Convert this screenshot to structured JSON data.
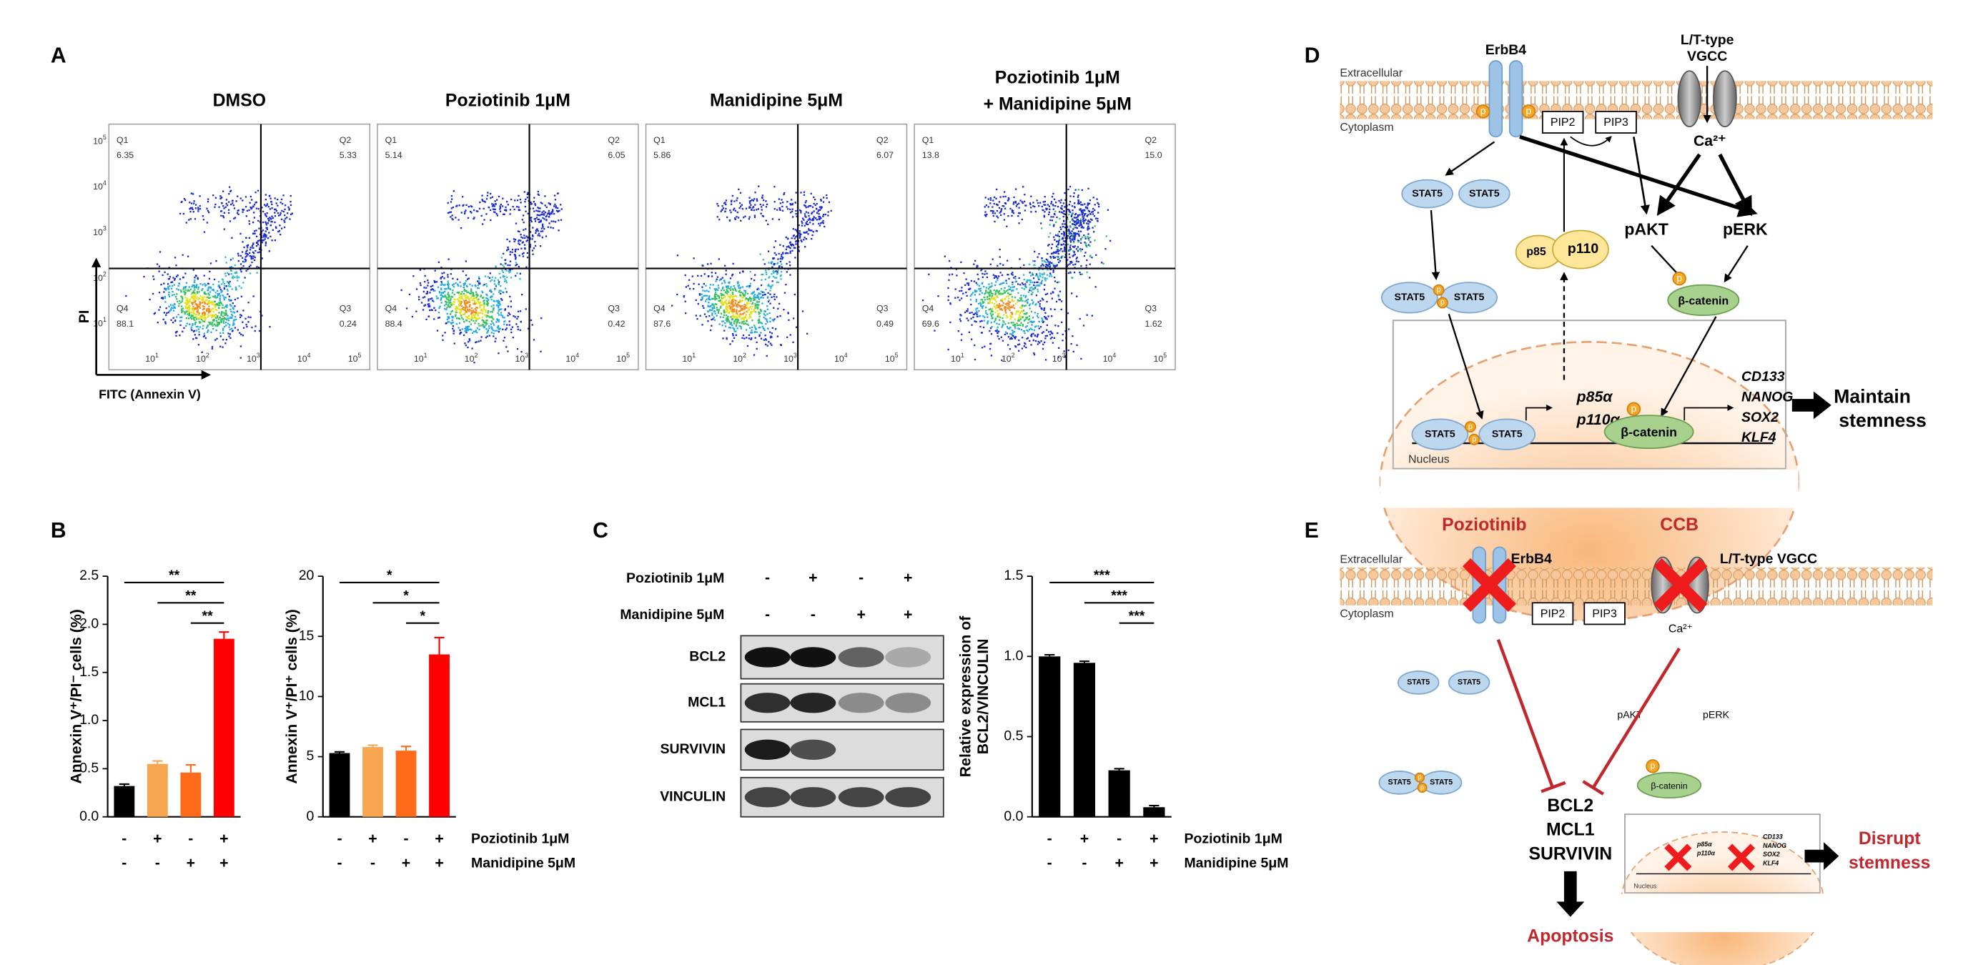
{
  "panel_labels": {
    "A": "A",
    "B": "B",
    "C": "C",
    "D": "D",
    "E": "E"
  },
  "flow_cytometry": {
    "x_label": "FITC (Annexin V)",
    "y_label": "PI",
    "axis_base": "10",
    "axis_exponents": [
      "1",
      "2",
      "3",
      "4",
      "5"
    ],
    "plots": [
      {
        "title": [
          "DMSO"
        ],
        "quadrants": [
          {
            "name": "Q1",
            "value": "6.35"
          },
          {
            "name": "Q2",
            "value": "5.33"
          },
          {
            "name": "Q4",
            "value": "88.1"
          },
          {
            "name": "Q3",
            "value": "0.24"
          }
        ]
      },
      {
        "title": [
          "Poziotinib 1μM"
        ],
        "quadrants": [
          {
            "name": "Q1",
            "value": "5.14"
          },
          {
            "name": "Q2",
            "value": "6.05"
          },
          {
            "name": "Q4",
            "value": "88.4"
          },
          {
            "name": "Q3",
            "value": "0.42"
          }
        ]
      },
      {
        "title": [
          "Manidipine 5μM"
        ],
        "quadrants": [
          {
            "name": "Q1",
            "value": "5.86"
          },
          {
            "name": "Q2",
            "value": "6.07"
          },
          {
            "name": "Q4",
            "value": "87.6"
          },
          {
            "name": "Q3",
            "value": "0.49"
          }
        ]
      },
      {
        "title": [
          "Poziotinib 1μM",
          "+ Manidipine 5μM"
        ],
        "quadrants": [
          {
            "name": "Q1",
            "value": "13.8"
          },
          {
            "name": "Q2",
            "value": "15.0"
          },
          {
            "name": "Q4",
            "value": "69.6"
          },
          {
            "name": "Q3",
            "value": "1.62"
          }
        ]
      }
    ]
  },
  "chart_data": [
    {
      "type": "bar",
      "y_label": [
        "Annexin V⁺/PI⁻ cells (%)"
      ],
      "categories": [
        null,
        null,
        null,
        null
      ],
      "values": [
        0.32,
        0.55,
        0.46,
        1.85
      ],
      "errors": [
        0.02,
        0.03,
        0.08,
        0.07
      ],
      "colors": [
        "#000000",
        "#f6a550",
        "#ff6b1a",
        "#ff0000"
      ],
      "ylim": [
        0,
        2.5
      ],
      "yticks": [
        {
          "value": 0,
          "label": "0.0"
        },
        0.5,
        {
          "value": 1,
          "label": "1.0"
        },
        1.5,
        {
          "value": 2,
          "label": "2.0"
        },
        2.5
      ],
      "significance": [
        {
          "label": "**",
          "from": 0,
          "to": 3
        },
        {
          "label": "**",
          "from": 1,
          "to": 3
        },
        {
          "label": "**",
          "from": 2,
          "to": 3
        }
      ],
      "conditions": [
        {
          "marks": [
            "-",
            "+",
            "-",
            "+"
          ]
        },
        {
          "marks": [
            "-",
            "-",
            "+",
            "+"
          ]
        }
      ]
    },
    {
      "type": "bar",
      "y_label": [
        "Annexin V⁺/PI⁺ cells (%)"
      ],
      "categories": [
        null,
        null,
        null,
        null
      ],
      "values": [
        5.3,
        5.8,
        5.5,
        13.5
      ],
      "errors": [
        0.1,
        0.15,
        0.35,
        1.4
      ],
      "colors": [
        "#000000",
        "#f6a550",
        "#ff6b1a",
        "#ff0000"
      ],
      "ylim": [
        0,
        20
      ],
      "yticks": [
        0,
        5,
        10,
        15,
        20
      ],
      "significance": [
        {
          "label": "*",
          "from": 0,
          "to": 3
        },
        {
          "label": "*",
          "from": 1,
          "to": 3
        },
        {
          "label": "*",
          "from": 2,
          "to": 3
        }
      ],
      "conditions": [
        {
          "name": "Poziotinib 1μM",
          "marks": [
            "-",
            "+",
            "-",
            "+"
          ]
        },
        {
          "name": "Manidipine 5μM",
          "marks": [
            "-",
            "-",
            "+",
            "+"
          ]
        }
      ]
    },
    {
      "type": "bar",
      "y_label": [
        "Relative expression of",
        "BCL2/VINCULIN"
      ],
      "categories": [
        null,
        null,
        null,
        null
      ],
      "values": [
        1.0,
        0.96,
        0.29,
        0.06
      ],
      "errors": [
        0.01,
        0.01,
        0.01,
        0.01
      ],
      "colors": [
        "#000000",
        "#000000",
        "#000000",
        "#000000"
      ],
      "ylim": [
        0,
        1.5
      ],
      "yticks": [
        {
          "value": 0,
          "label": "0.0"
        },
        0.5,
        {
          "value": 1,
          "label": "1.0"
        },
        1.5
      ],
      "significance": [
        {
          "label": "***",
          "from": 0,
          "to": 3
        },
        {
          "label": "***",
          "from": 1,
          "to": 3
        },
        {
          "label": "***",
          "from": 2,
          "to": 3
        }
      ],
      "conditions": [
        {
          "name": "Poziotinib 1μM",
          "marks": [
            "-",
            "+",
            "-",
            "+"
          ]
        },
        {
          "name": "Manidipine 5μM",
          "marks": [
            "-",
            "-",
            "+",
            "+"
          ]
        }
      ]
    }
  ],
  "western_blot": {
    "treatments": [
      {
        "name": "Poziotinib 1μM",
        "marks": [
          "-",
          "+",
          "-",
          "+"
        ]
      },
      {
        "name": "Manidipine 5μM",
        "marks": [
          "-",
          "-",
          "+",
          "+"
        ]
      }
    ],
    "proteins": [
      "BCL2",
      "MCL1",
      "SURVIVIN",
      "VINCULIN"
    ]
  },
  "panel_d": {
    "extracellular": "Extracellular",
    "cytoplasm": "Cytoplasm",
    "erbb4": "ErbB4",
    "vgcc": [
      "L/T-type",
      "VGCC"
    ],
    "pip2": "PIP2",
    "pip3": "PIP3",
    "calcium": "Ca²⁺",
    "stat5": "STAT5",
    "pakt": "pAKT",
    "perk": "pERK",
    "p85": "p85",
    "p110": "p110",
    "phospho": "p",
    "beta_catenin": "β-catenin",
    "p85a": "p85α",
    "p110a": "p110α",
    "target_genes": [
      "CD133",
      "NANOG",
      "SOX2",
      "KLF4"
    ],
    "nucleus": "Nucleus",
    "outcome": [
      "Maintain",
      "stemness"
    ]
  },
  "panel_e": {
    "poziotinib": "Poziotinib",
    "ccb": "CCB",
    "extracellular": "Extracellular",
    "cytoplasm": "Cytoplasm",
    "erbb4": "ErbB4",
    "vgcc": "L/T-type VGCC",
    "pip2": "PIP2",
    "pip3": "PIP3",
    "calcium": "Ca²⁺",
    "stat5": "STAT5",
    "pakt": "pAKT",
    "perk": "pERK",
    "phospho": "p",
    "beta_catenin": "β-catenin",
    "anti_apoptotic": [
      "BCL2",
      "MCL1",
      "SURVIVIN"
    ],
    "apoptosis": "Apoptosis",
    "p85a": "p85α",
    "p110a": "p110α",
    "target_genes": [
      "CD133",
      "NANOG",
      "SOX2",
      "KLF4"
    ],
    "nucleus": "Nucleus",
    "outcome": [
      "Disrupt",
      "stemness"
    ]
  }
}
